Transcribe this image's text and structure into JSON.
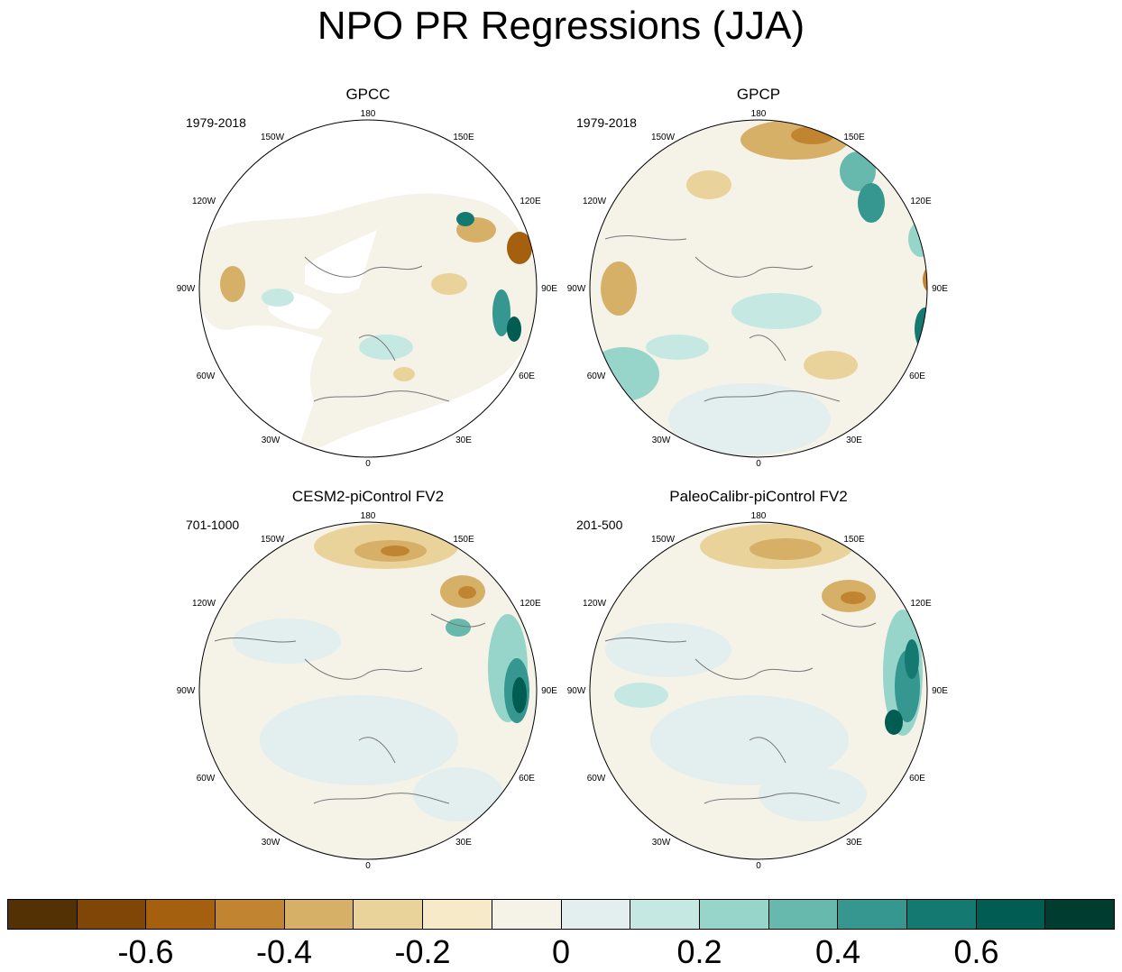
{
  "title": "NPO PR Regressions (JJA)",
  "lon_labels": [
    "180",
    "150E",
    "120E",
    "90E",
    "60E",
    "30E",
    "0",
    "30W",
    "60W",
    "90W",
    "120W",
    "150W"
  ],
  "panels": [
    {
      "id": "gpcc",
      "title": "GPCC",
      "period": "1979-2018"
    },
    {
      "id": "gpcp",
      "title": "GPCP",
      "period": "1979-2018"
    },
    {
      "id": "cesm2",
      "title": "CESM2-piControl FV2",
      "period": "701-1000"
    },
    {
      "id": "paleocalibr",
      "title": "PaleoCalibr-piControl FV2",
      "period": "201-500"
    }
  ],
  "colorbar": {
    "colors": [
      "#543005",
      "#7f4607",
      "#a4600f",
      "#c18532",
      "#d7b068",
      "#e9d39b",
      "#f6eac8",
      "#f5f2e8",
      "#e2efee",
      "#c5e9e2",
      "#97d4c9",
      "#67b8ad",
      "#35978f",
      "#147a71",
      "#015c52",
      "#003c30"
    ],
    "labels": [
      "-0.6",
      "-0.4",
      "-0.2",
      "0",
      "0.2",
      "0.4",
      "0.6"
    ]
  },
  "colors": {
    "background": "#ffffff",
    "coastline": "#777777",
    "border": "#000000"
  }
}
